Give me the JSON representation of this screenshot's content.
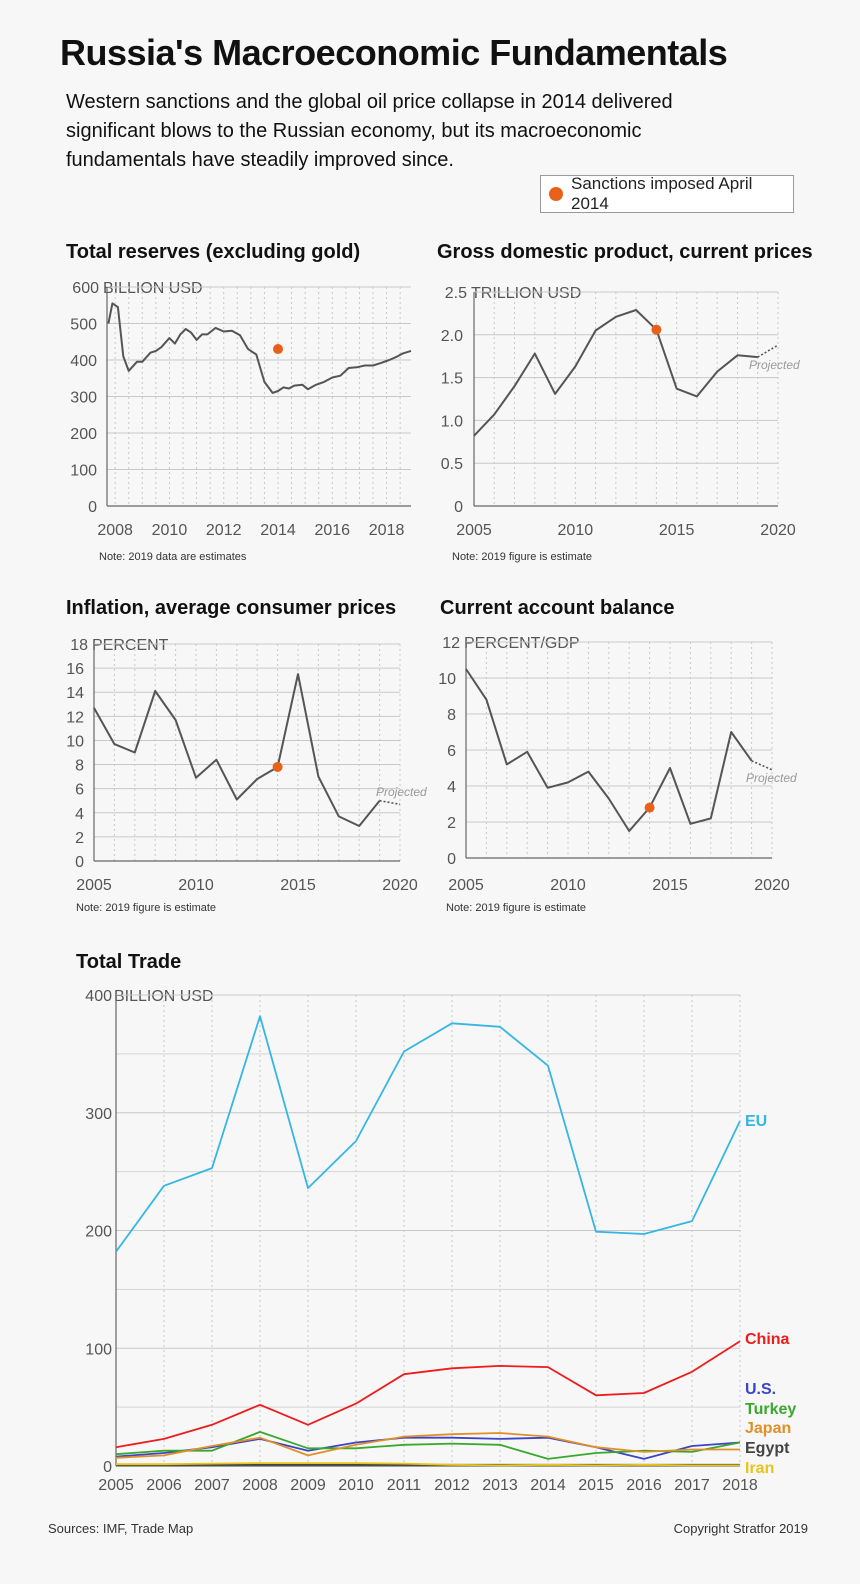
{
  "header": {
    "title": "Russia's Macroeconomic Fundamentals",
    "subtitle": "Western sanctions and the global oil price collapse in 2014 delivered significant blows to the Russian economy, but its macroeconomic fundamentals have steadily improved since.",
    "legend": "Sanctions imposed April 2014"
  },
  "colors": {
    "line": "#555555",
    "marker": "#e8611a",
    "grid": "#cccccc"
  },
  "chart_data": [
    {
      "id": "reserves",
      "type": "line",
      "title": "Total reserves (excluding gold)",
      "ylabel": "BILLION USD",
      "note": "Note: 2019 data are estimates",
      "xlim": [
        2007.7,
        2018.9
      ],
      "ylim": [
        0,
        600
      ],
      "xticks": [
        2008,
        2010,
        2012,
        2014,
        2016,
        2018
      ],
      "yticks": [
        0,
        100,
        200,
        300,
        400,
        500,
        600
      ],
      "x": [
        2007.75,
        2007.9,
        2008.1,
        2008.3,
        2008.5,
        2008.8,
        2009.0,
        2009.3,
        2009.5,
        2009.7,
        2010.0,
        2010.2,
        2010.4,
        2010.6,
        2010.8,
        2011.0,
        2011.2,
        2011.4,
        2011.7,
        2012.0,
        2012.3,
        2012.6,
        2012.9,
        2013.2,
        2013.5,
        2013.8,
        2014.0,
        2014.2,
        2014.4,
        2014.6,
        2014.9,
        2015.1,
        2015.4,
        2015.7,
        2016.0,
        2016.3,
        2016.6,
        2016.9,
        2017.2,
        2017.5,
        2017.8,
        2018.1,
        2018.4,
        2018.6,
        2018.9
      ],
      "values": [
        500,
        555,
        545,
        410,
        370,
        395,
        395,
        420,
        425,
        435,
        460,
        445,
        470,
        485,
        475,
        455,
        470,
        470,
        488,
        478,
        480,
        468,
        430,
        415,
        340,
        310,
        315,
        325,
        322,
        330,
        332,
        320,
        332,
        340,
        352,
        357,
        378,
        380,
        385,
        385,
        392,
        400,
        410,
        418,
        425
      ],
      "marker": {
        "x": 2014,
        "y": 430
      }
    },
    {
      "id": "gdp",
      "type": "line",
      "title": "Gross domestic product, current prices",
      "ylabel": "TRILLION USD",
      "note": "Note: 2019 figure is estimate",
      "projected_label": "Projected",
      "xlim": [
        2005,
        2020
      ],
      "ylim": [
        0,
        2.5
      ],
      "xticks": [
        2005,
        2010,
        2015,
        2020
      ],
      "yticks": [
        0,
        0.5,
        1.0,
        1.5,
        2.0,
        2.5
      ],
      "ytick_labels": [
        "0",
        "0.5",
        "1.0",
        "1.5",
        "2.0",
        "2.5"
      ],
      "x": [
        2005,
        2006,
        2007,
        2008,
        2009,
        2010,
        2011,
        2012,
        2013,
        2014,
        2015,
        2016,
        2017,
        2018,
        2019
      ],
      "values": [
        0.82,
        1.07,
        1.4,
        1.78,
        1.31,
        1.63,
        2.05,
        2.21,
        2.29,
        2.06,
        1.37,
        1.28,
        1.57,
        1.76,
        1.74
      ],
      "projected": {
        "x": [
          2019,
          2020
        ],
        "values": [
          1.74,
          1.88
        ]
      },
      "marker": {
        "x": 2014,
        "y": 2.06
      }
    },
    {
      "id": "inflation",
      "type": "line",
      "title": "Inflation, average consumer prices",
      "ylabel": "PERCENT",
      "note": "Note: 2019 figure is estimate",
      "projected_label": "Projected",
      "xlim": [
        2005,
        2020
      ],
      "ylim": [
        0,
        18
      ],
      "xticks": [
        2005,
        2010,
        2015,
        2020
      ],
      "yticks": [
        0,
        2,
        4,
        6,
        8,
        10,
        12,
        14,
        16,
        18
      ],
      "x": [
        2005,
        2006,
        2007,
        2008,
        2009,
        2010,
        2011,
        2012,
        2013,
        2014,
        2015,
        2016,
        2017,
        2018,
        2019
      ],
      "values": [
        12.7,
        9.7,
        9.0,
        14.1,
        11.7,
        6.9,
        8.4,
        5.1,
        6.8,
        7.8,
        15.5,
        7.0,
        3.7,
        2.9,
        5.0
      ],
      "projected": {
        "x": [
          2019,
          2020
        ],
        "values": [
          5.0,
          4.7
        ]
      },
      "marker": {
        "x": 2014,
        "y": 7.8
      }
    },
    {
      "id": "current_account",
      "type": "line",
      "title": "Current account balance",
      "ylabel": "PERCENT/GDP",
      "note": "Note: 2019 figure is estimate",
      "projected_label": "Projected",
      "xlim": [
        2005,
        2020
      ],
      "ylim": [
        0,
        12
      ],
      "xticks": [
        2005,
        2010,
        2015,
        2020
      ],
      "yticks": [
        0,
        2,
        4,
        6,
        8,
        10,
        12
      ],
      "x": [
        2005,
        2006,
        2007,
        2008,
        2009,
        2010,
        2011,
        2012,
        2013,
        2014,
        2015,
        2016,
        2017,
        2018,
        2019
      ],
      "values": [
        10.5,
        8.8,
        5.2,
        5.9,
        3.9,
        4.2,
        4.8,
        3.3,
        1.5,
        2.8,
        5.0,
        1.9,
        2.2,
        7.0,
        5.4
      ],
      "projected": {
        "x": [
          2019,
          2020
        ],
        "values": [
          5.4,
          4.9
        ]
      },
      "marker": {
        "x": 2014,
        "y": 2.8
      }
    },
    {
      "id": "trade",
      "type": "line",
      "title": "Total Trade",
      "ylabel": "BILLION USD",
      "xlim": [
        2005,
        2018
      ],
      "ylim": [
        0,
        400
      ],
      "xticks": [
        2005,
        2006,
        2007,
        2008,
        2009,
        2010,
        2011,
        2012,
        2013,
        2014,
        2015,
        2016,
        2017,
        2018
      ],
      "yticks": [
        0,
        100,
        200,
        300,
        400
      ],
      "ytick_labels": [
        "0",
        "100",
        "200",
        "300",
        "400"
      ],
      "x": [
        2005,
        2006,
        2007,
        2008,
        2009,
        2010,
        2011,
        2012,
        2013,
        2014,
        2015,
        2016,
        2017,
        2018
      ],
      "series": [
        {
          "name": "EU",
          "color": "#35b6e3",
          "values": [
            182,
            238,
            253,
            382,
            236,
            276,
            352,
            376,
            373,
            340,
            199,
            197,
            208,
            293
          ]
        },
        {
          "name": "China",
          "color": "#ee1c1c",
          "values": [
            16,
            23,
            35,
            52,
            35,
            53,
            78,
            83,
            85,
            84,
            60,
            62,
            80,
            106
          ]
        },
        {
          "name": "U.S.",
          "color": "#3c44c8",
          "values": [
            8,
            11,
            16,
            23,
            13,
            20,
            24,
            24,
            23,
            24,
            16,
            6,
            17,
            20
          ]
        },
        {
          "name": "Turkey",
          "color": "#3aa82c",
          "values": [
            10,
            13,
            13,
            29,
            15,
            15,
            18,
            19,
            18,
            6,
            11,
            13,
            12,
            20
          ]
        },
        {
          "name": "Japan",
          "color": "#e09028",
          "values": [
            7,
            9,
            17,
            24,
            9,
            18,
            25,
            27,
            28,
            25,
            16,
            12,
            14,
            14
          ]
        },
        {
          "name": "Egypt",
          "color": "#444444",
          "values": [
            1,
            1,
            1,
            1,
            1,
            1,
            1,
            1,
            1,
            1,
            1,
            1,
            1,
            1
          ]
        },
        {
          "name": "Iran",
          "color": "#e8c41a",
          "values": [
            1.5,
            1.5,
            2,
            2.5,
            2.5,
            2.5,
            2,
            1,
            0.5,
            1,
            0.5,
            1,
            0.5,
            0.5
          ]
        }
      ]
    }
  ],
  "footer": {
    "sources": "Sources: IMF, Trade Map",
    "copyright": "Copyright Stratfor 2019"
  }
}
